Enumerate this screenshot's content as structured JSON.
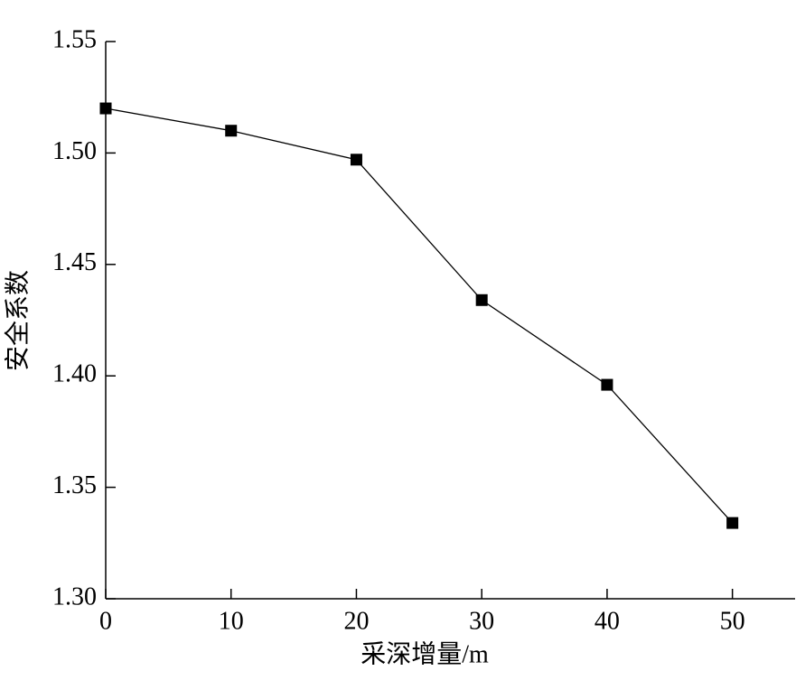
{
  "chart_data": {
    "type": "line",
    "x_label": "采深增量/m",
    "y_label": "安全系数",
    "x": [
      0,
      10,
      20,
      30,
      40,
      50
    ],
    "series": [
      {
        "color": "#000000",
        "values": [
          1.52,
          1.51,
          1.497,
          1.434,
          1.396,
          1.334
        ]
      }
    ],
    "xlim": [
      0,
      55
    ],
    "xticks": [
      0,
      10,
      20,
      30,
      40,
      50
    ],
    "ylim": [
      1.3,
      1.55
    ],
    "yticks": [
      {
        "value": 1.3,
        "label": "1.30"
      },
      1.35,
      {
        "value": 1.4,
        "label": "1.40"
      },
      1.45,
      {
        "value": 1.5,
        "label": "1.50"
      },
      1.55
    ]
  }
}
